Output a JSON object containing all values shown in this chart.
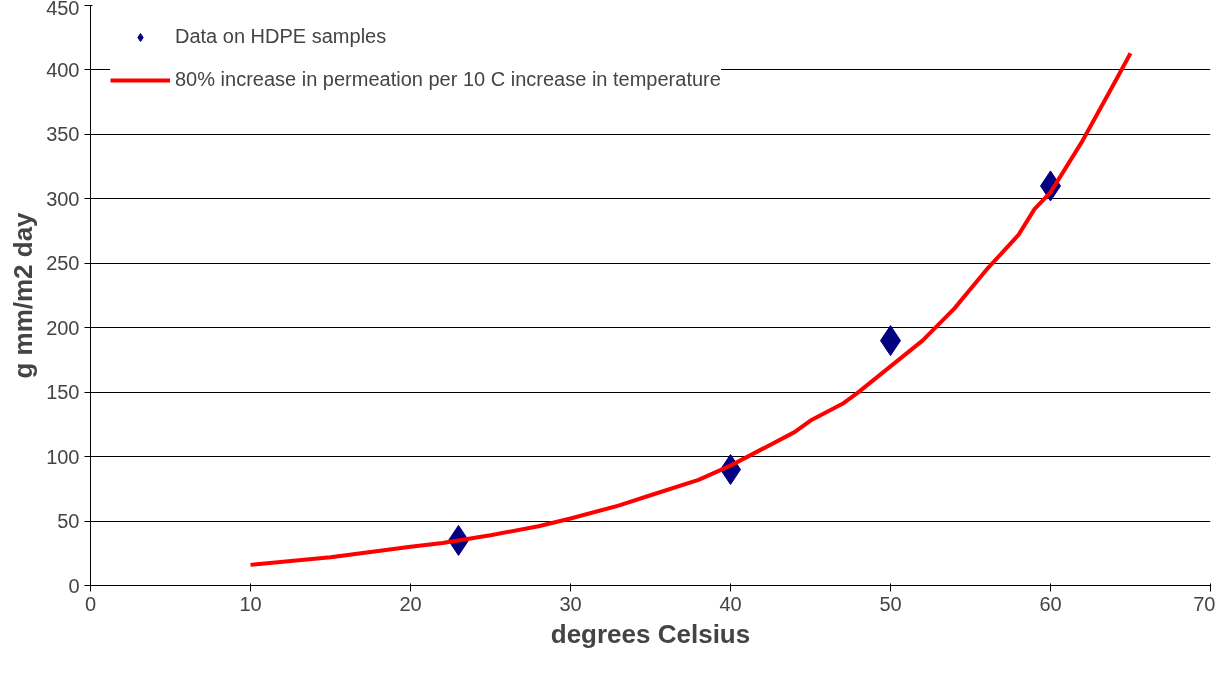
{
  "chart_data": {
    "type": "scatter",
    "xlabel": "degrees Celsius",
    "ylabel": "g mm/m2 day",
    "xlim": [
      0,
      70
    ],
    "xticks": [
      0,
      10,
      20,
      30,
      40,
      50,
      60,
      70
    ],
    "ylim": [
      0,
      450
    ],
    "yticks": [
      0,
      50,
      100,
      150,
      200,
      250,
      300,
      350,
      400,
      450
    ],
    "grid": "y",
    "legend": "top left",
    "series": [
      {
        "name": "Data on HDPE samples",
        "marker": "diamond",
        "color": "#000080",
        "x": [
          23,
          40,
          50,
          60
        ],
        "values": [
          35,
          90,
          190,
          310
        ]
      },
      {
        "name": "80% increase in permeation per 10 C increase in temperature",
        "type": "line",
        "color": "#ff0000",
        "line_style": "solid",
        "marker": "none",
        "x": [
          10,
          15,
          20,
          22,
          25,
          28,
          30,
          33,
          35,
          38,
          40,
          42,
          44,
          45,
          47,
          48,
          50,
          52,
          54,
          55,
          56,
          58,
          59,
          60,
          62,
          64,
          65
        ],
        "values": [
          16,
          22,
          30,
          33,
          39,
          46,
          52,
          62,
          70,
          82,
          93,
          106,
          119,
          128,
          141,
          150,
          170,
          190,
          215,
          230,
          245,
          272,
          292,
          305,
          345,
          390,
          413
        ]
      }
    ]
  }
}
